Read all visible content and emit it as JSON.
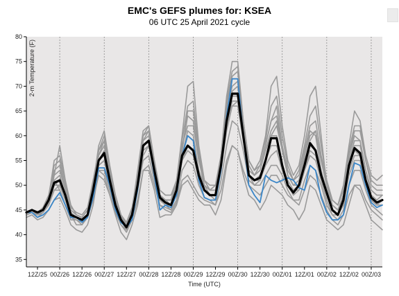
{
  "chart_data": {
    "type": "line",
    "title": "EMC's GEFS plumes for: KSEA",
    "subtitle": "06 UTC 25 April 2021 cycle",
    "xlabel": "Time (UTC)",
    "ylabel": "2-m Temperature (F)",
    "ylim": [
      33.5,
      80
    ],
    "yticks": [
      35,
      40,
      45,
      50,
      55,
      60,
      65,
      70,
      75,
      80
    ],
    "x_range_hours": [
      6,
      198
    ],
    "x_ticks": [
      {
        "hour": 12,
        "label": "12Z/25"
      },
      {
        "hour": 24,
        "label": "00Z/26"
      },
      {
        "hour": 36,
        "label": "12Z/26"
      },
      {
        "hour": 48,
        "label": "00Z/27"
      },
      {
        "hour": 60,
        "label": "12Z/27"
      },
      {
        "hour": 72,
        "label": "00Z/28"
      },
      {
        "hour": 84,
        "label": "12Z/28"
      },
      {
        "hour": 96,
        "label": "00Z/29"
      },
      {
        "hour": 108,
        "label": "12Z/29"
      },
      {
        "hour": 120,
        "label": "00Z/30"
      },
      {
        "hour": 132,
        "label": "12Z/30"
      },
      {
        "hour": 144,
        "label": "00Z/01"
      },
      {
        "hour": 156,
        "label": "12Z/01"
      },
      {
        "hour": 168,
        "label": "00Z/02"
      },
      {
        "hour": 180,
        "label": "12Z/02"
      },
      {
        "hour": 192,
        "label": "00Z/03"
      }
    ],
    "grid": "vertical dotted at 00Z",
    "hours": [
      6,
      9,
      12,
      15,
      18,
      21,
      24,
      27,
      30,
      33,
      36,
      39,
      42,
      45,
      48,
      51,
      54,
      57,
      60,
      63,
      66,
      69,
      72,
      75,
      78,
      81,
      84,
      87,
      90,
      93,
      96,
      99,
      102,
      105,
      108,
      111,
      114,
      117,
      120,
      123,
      126,
      129,
      132,
      135,
      138,
      141,
      144,
      147,
      150,
      153,
      156,
      159,
      162,
      165,
      168,
      171,
      174,
      177,
      180,
      183,
      186,
      189,
      192,
      195,
      198
    ],
    "series": [
      {
        "role": "ensemble_mean",
        "color": "#000000",
        "values": [
          44.5,
          45,
          44.5,
          45,
          47,
          50.5,
          51,
          48,
          44,
          43.5,
          43,
          44,
          49,
          55,
          56.5,
          51,
          46,
          43,
          41.5,
          44,
          50,
          58,
          59,
          53,
          47.5,
          46.5,
          46,
          49,
          56,
          58,
          57,
          52,
          49,
          48,
          48,
          54,
          63,
          68.5,
          68.5,
          60,
          52,
          51,
          51.5,
          55,
          59.5,
          59.5,
          54,
          50,
          48.5,
          50,
          54,
          58.5,
          57,
          52,
          48.5,
          45,
          44,
          47,
          54,
          57.5,
          56.5,
          51,
          47.5,
          46.5,
          47
        ]
      },
      {
        "role": "control",
        "color": "#3a86c8",
        "values": [
          44.5,
          44.5,
          43.5,
          44,
          45,
          47,
          48.5,
          46,
          43.5,
          43.5,
          42.5,
          43.5,
          47.5,
          53.5,
          53.5,
          50,
          45,
          42.5,
          41.5,
          43,
          49,
          58,
          59,
          52,
          45,
          46,
          45.5,
          48,
          56,
          60,
          59,
          51,
          47.5,
          47,
          47,
          53,
          64,
          71.5,
          71.5,
          60,
          50,
          48,
          46.5,
          52,
          51,
          50.5,
          51,
          51.5,
          51,
          49.5,
          49,
          54,
          53,
          47.5,
          44.5,
          43,
          43,
          44,
          50,
          54.5,
          54,
          50,
          46.5,
          45.5,
          46
        ]
      },
      {
        "role": "member",
        "color": "#9a9a9a",
        "values": [
          44,
          44.5,
          44,
          44.5,
          46,
          52,
          58,
          51,
          44,
          42,
          42,
          44,
          50,
          58,
          61,
          54,
          48,
          44,
          42.5,
          45,
          53,
          61,
          62,
          54,
          48,
          47,
          47,
          51,
          60,
          70,
          71,
          58,
          51,
          49,
          50,
          56,
          68,
          75,
          75,
          63,
          55,
          53,
          55,
          60,
          70,
          72,
          62,
          55,
          52,
          54,
          60,
          68,
          70,
          60,
          50,
          47,
          46,
          50,
          58,
          65,
          63,
          56,
          52,
          51,
          52
        ]
      },
      {
        "role": "member",
        "color": "#9a9a9a",
        "values": [
          43.5,
          44,
          43,
          43.5,
          45,
          47,
          47.5,
          45,
          42,
          41,
          40.5,
          42,
          46,
          53,
          52,
          48,
          44,
          40.5,
          39,
          42,
          46,
          53,
          53,
          49,
          43.5,
          44,
          44,
          46,
          50,
          51,
          49,
          47,
          46,
          46,
          44,
          47,
          54,
          58,
          57,
          52,
          48,
          47,
          45,
          47,
          50,
          49,
          48,
          46,
          45,
          43,
          45,
          50,
          49,
          46,
          43,
          42,
          41,
          42,
          46,
          50,
          49,
          46,
          43,
          42,
          41
        ]
      },
      {
        "role": "member",
        "color": "#9a9a9a",
        "values": [
          44.5,
          45,
          44,
          44.5,
          47,
          51,
          49,
          46,
          43,
          43,
          42.5,
          44,
          48,
          55,
          57,
          51,
          46,
          43,
          41,
          44,
          50,
          59,
          60,
          52,
          47,
          46,
          45,
          49,
          56,
          61,
          60,
          53,
          50,
          49,
          50,
          54,
          63,
          66,
          67,
          60,
          53,
          52,
          54,
          58,
          63,
          66,
          58,
          52,
          50,
          50,
          56,
          61,
          60,
          53,
          49,
          46,
          45,
          48,
          56,
          60,
          59,
          53,
          48,
          47,
          48
        ]
      },
      {
        "role": "member",
        "color": "#9a9a9a",
        "values": [
          44,
          44.5,
          44,
          45,
          47.5,
          55,
          56,
          51,
          46,
          44,
          43.5,
          45,
          51,
          56,
          59,
          53,
          47,
          44,
          42,
          45,
          51,
          57,
          58,
          54,
          48,
          47,
          47,
          50,
          57,
          65,
          65,
          56,
          50,
          48,
          48,
          56,
          66,
          72,
          73,
          62,
          54,
          52,
          53,
          57,
          60,
          62,
          57,
          52,
          50,
          50,
          55,
          59,
          61,
          55,
          50,
          46,
          45,
          48,
          55,
          58,
          58,
          53,
          49,
          48,
          48
        ]
      },
      {
        "role": "member",
        "color": "#9a9a9a",
        "values": [
          44.5,
          45,
          44.5,
          45,
          46,
          49,
          50,
          47,
          44,
          43.5,
          43,
          44,
          48,
          54,
          55,
          50,
          46,
          43.5,
          42,
          44,
          49,
          56,
          58,
          52,
          47,
          46.5,
          46,
          48,
          55,
          57,
          56,
          51,
          49,
          48,
          47,
          53,
          61,
          66,
          66,
          59,
          52,
          50,
          51,
          54,
          56,
          57,
          53,
          50,
          48,
          49,
          53,
          56,
          55,
          51,
          47,
          44,
          44,
          46,
          52,
          55,
          55,
          50,
          47,
          46,
          46
        ]
      },
      {
        "role": "member",
        "color": "#9a9a9a",
        "values": [
          44.5,
          45,
          44.5,
          45,
          47,
          50,
          51,
          48,
          44,
          43.5,
          43,
          44,
          49,
          55,
          56,
          51,
          46,
          43,
          41.5,
          44,
          50,
          58,
          59,
          53,
          48,
          47,
          46,
          49,
          56,
          58,
          57,
          52,
          49,
          48,
          48,
          54,
          63,
          68,
          68,
          60,
          52,
          51,
          51,
          55,
          60,
          60,
          54,
          50,
          49,
          50,
          54,
          58,
          57,
          52,
          48,
          45,
          44,
          47,
          54,
          57,
          56,
          51,
          47,
          46,
          47
        ]
      },
      {
        "role": "member",
        "color": "#9a9a9a",
        "values": [
          44,
          44.5,
          43.5,
          44.5,
          46,
          50,
          50,
          47,
          43.5,
          43,
          42,
          43.5,
          48,
          53,
          53,
          49,
          45,
          42,
          40.5,
          43,
          49,
          55,
          56,
          51,
          46,
          45.5,
          45,
          47,
          53,
          55,
          54,
          50,
          47.5,
          47,
          46,
          51,
          58,
          63,
          62,
          57,
          51,
          50,
          50,
          52,
          54,
          54,
          52,
          49,
          47,
          47,
          51,
          54,
          53,
          50,
          46,
          44,
          43,
          45,
          50,
          53,
          53,
          49,
          46,
          45,
          44
        ]
      },
      {
        "role": "member",
        "color": "#9a9a9a",
        "values": [
          44.5,
          45,
          44,
          45,
          47,
          52,
          53,
          49,
          45,
          44,
          43.5,
          45,
          50,
          57,
          59,
          52,
          47,
          44,
          42,
          45,
          52,
          60,
          61,
          55,
          49,
          48,
          48,
          50,
          58,
          62,
          62,
          55,
          51,
          50,
          50,
          56,
          65,
          70,
          71,
          62,
          55,
          53,
          54,
          58,
          63,
          64,
          58,
          53,
          51,
          52,
          57,
          62,
          63,
          56,
          51,
          47,
          46,
          49,
          56,
          61,
          61,
          55,
          50,
          49,
          49
        ]
      },
      {
        "role": "member",
        "color": "#9a9a9a",
        "values": [
          44,
          44.5,
          44,
          44.5,
          46,
          49,
          49,
          46,
          43.5,
          43,
          42.5,
          43.5,
          47,
          52,
          51,
          48,
          44.5,
          42,
          41,
          43,
          47,
          53,
          54,
          50,
          46,
          45,
          44.5,
          46.5,
          51,
          52,
          50,
          48,
          47,
          46.5,
          46,
          49,
          55,
          58,
          57,
          53,
          50,
          49,
          48,
          50,
          52,
          52,
          50,
          48,
          47,
          46,
          49,
          52,
          51,
          48,
          45,
          43,
          42,
          44,
          48,
          50,
          50,
          47,
          45,
          44,
          43
        ]
      },
      {
        "role": "member",
        "color": "#9a9a9a",
        "values": [
          44.5,
          45,
          44.5,
          45,
          47.5,
          53,
          54,
          49,
          45,
          44,
          43.5,
          45,
          50,
          56,
          58,
          52,
          47,
          43.5,
          42,
          45,
          51,
          59,
          61,
          54,
          48,
          47,
          47,
          50,
          57,
          64,
          63,
          55,
          50,
          49,
          49,
          55,
          64,
          69,
          70,
          61,
          54,
          52,
          53,
          57,
          61,
          63,
          57,
          52,
          50,
          51,
          56,
          60,
          61,
          55,
          50,
          46,
          45,
          48,
          55,
          59,
          59,
          53,
          49,
          48,
          48
        ]
      },
      {
        "role": "member",
        "color": "#9a9a9a",
        "values": [
          44,
          44.5,
          44,
          44.5,
          46.5,
          51,
          52,
          48,
          44.5,
          43.5,
          43,
          44,
          49,
          54,
          55,
          50,
          46,
          43,
          41,
          44,
          50,
          57,
          58,
          53,
          47,
          46,
          46,
          48.5,
          55,
          58,
          57,
          52,
          49,
          48,
          48,
          53,
          62,
          67,
          67,
          59,
          52,
          51,
          52,
          55,
          58,
          58,
          54,
          51,
          49,
          49,
          53,
          57,
          56,
          52,
          48,
          45,
          44,
          46,
          53,
          56,
          56,
          51,
          47,
          46,
          46
        ]
      },
      {
        "role": "member",
        "color": "#9a9a9a",
        "values": [
          44.5,
          45,
          44.5,
          45.5,
          48,
          54,
          55,
          50,
          45.5,
          44.5,
          44,
          45.5,
          51,
          57,
          60,
          53,
          48,
          44,
          42.5,
          45.5,
          52,
          60,
          62,
          55,
          49,
          48,
          48,
          51,
          59,
          66,
          67,
          57,
          51,
          49,
          49,
          56,
          67,
          73,
          74,
          63,
          55,
          53,
          55,
          59,
          66,
          68,
          60,
          54,
          51,
          53,
          58,
          64,
          66,
          58,
          51,
          47,
          46,
          49,
          57,
          62,
          62,
          55,
          51,
          50,
          50
        ]
      }
    ]
  }
}
